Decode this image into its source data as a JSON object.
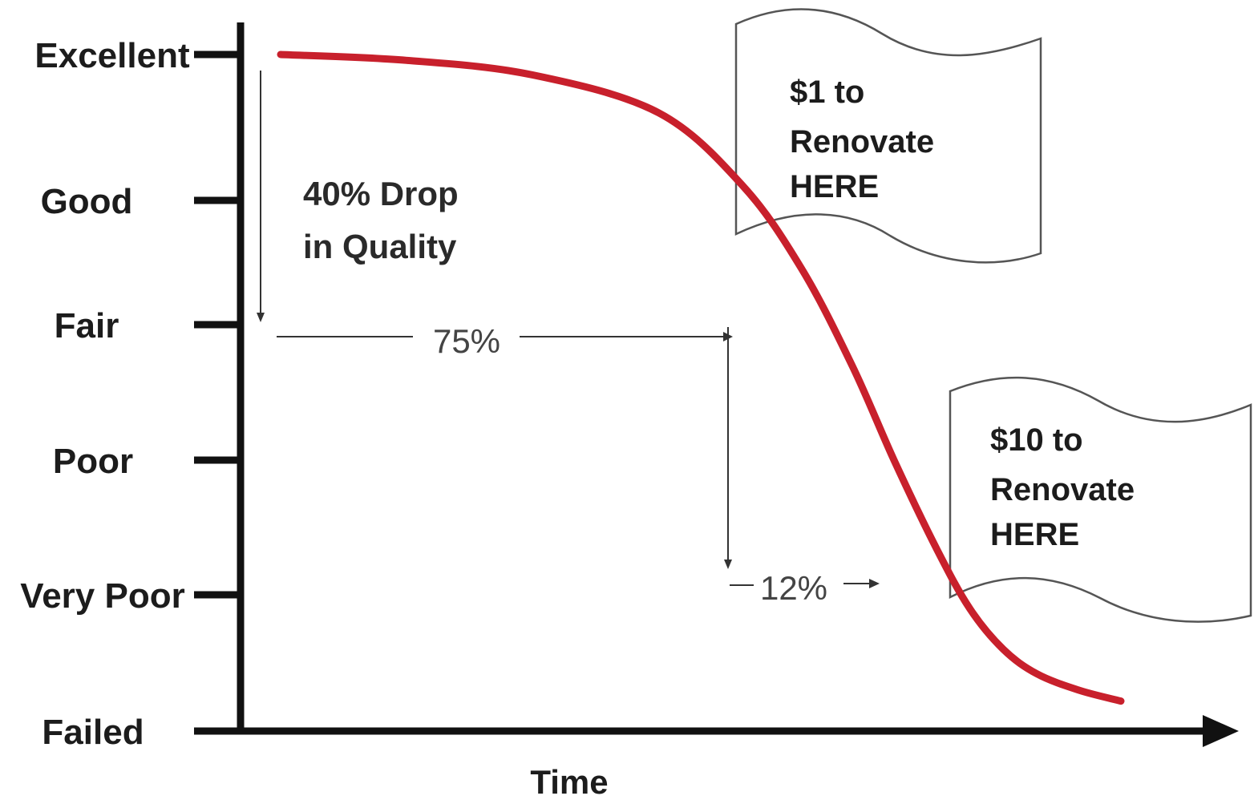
{
  "chart_data": {
    "type": "line",
    "y_categories": [
      "Excellent",
      "Good",
      "Fair",
      "Poor",
      "Very Poor",
      "Failed"
    ],
    "xlabel": "Time",
    "series": [
      {
        "color": "#c8202c",
        "x": [
          0,
          0.15,
          0.3,
          0.45,
          0.55,
          0.62,
          0.68,
          0.73,
          0.78,
          0.82,
          0.86,
          0.9,
          0.95,
          1.0
        ],
        "y": [
          5.0,
          4.96,
          4.86,
          4.6,
          4.1,
          3.45,
          2.7,
          2.0,
          1.35,
          0.9,
          0.6,
          0.42,
          0.3,
          0.22
        ]
      }
    ],
    "annotations": {
      "drop_text_line1": "40% Drop",
      "drop_text_line2": "in Quality",
      "pct_75": "75%",
      "pct_12": "12%",
      "flag1_lines": [
        "$1 to",
        "Renovate",
        "HERE"
      ],
      "flag2_lines": [
        "$10 to",
        "Renovate",
        "HERE"
      ]
    },
    "colors": {
      "curve": "#c8202c",
      "axis": "#111111",
      "annotation_line": "#333333"
    }
  }
}
